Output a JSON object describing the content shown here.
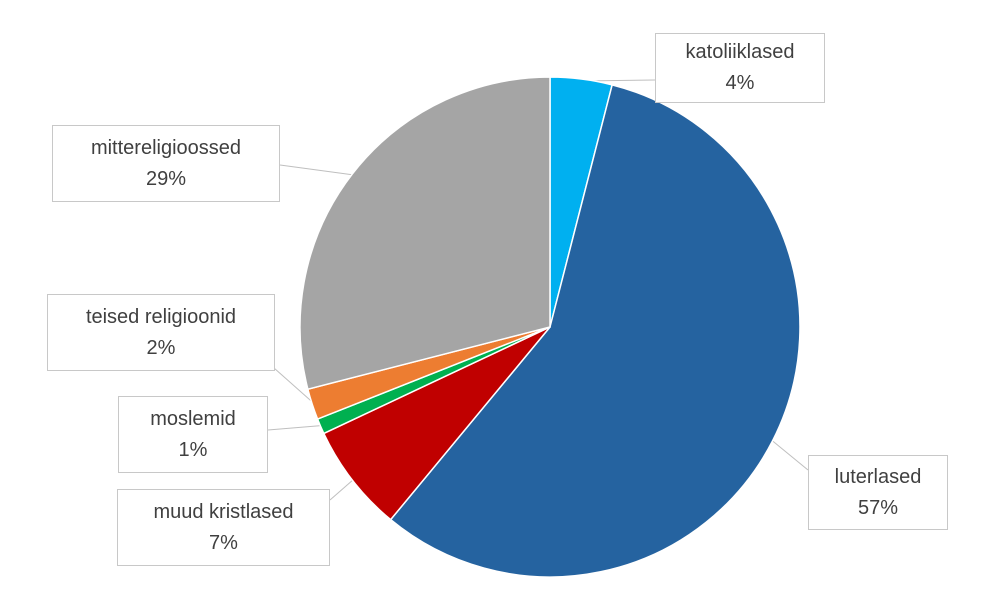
{
  "chart_data": {
    "type": "pie",
    "title": "",
    "slices": [
      {
        "name": "katoliiklased",
        "value": 4,
        "label": "4%",
        "color": "#00b0f0"
      },
      {
        "name": "luterlased",
        "value": 57,
        "label": "57%",
        "color": "#2563a0"
      },
      {
        "name": "muud kristlased",
        "value": 7,
        "label": "7%",
        "color": "#c00000"
      },
      {
        "name": "moslemid",
        "value": 1,
        "label": "1%",
        "color": "#00b050"
      },
      {
        "name": "teised religioonid",
        "value": 2,
        "label": "2%",
        "color": "#ed7d31"
      },
      {
        "name": "mittereligioossed",
        "value": 29,
        "label": "29%",
        "color": "#a5a5a5"
      }
    ]
  }
}
